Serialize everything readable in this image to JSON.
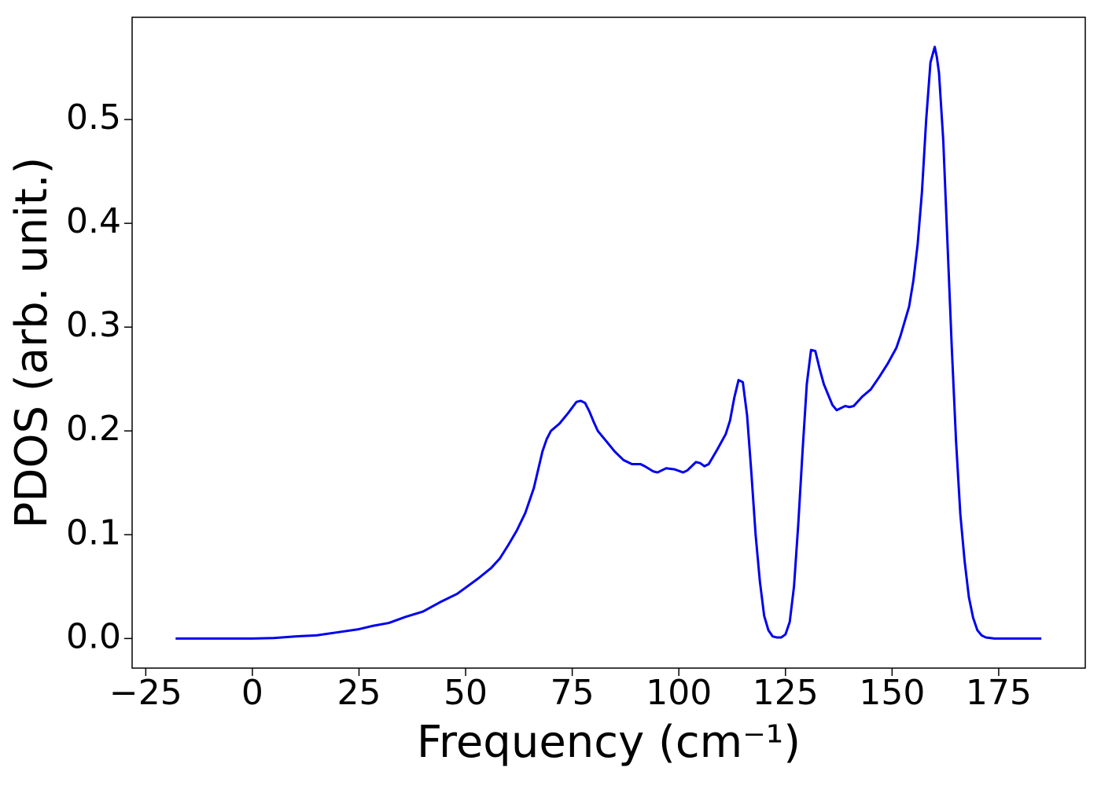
{
  "chart_data": {
    "type": "line",
    "xlabel": "Frequency (cm⁻¹)",
    "ylabel": "PDOS (arb. unit.)",
    "xlim": [
      -28.2,
      195.3
    ],
    "ylim": [
      -0.0285,
      0.5985
    ],
    "xticks": [
      {
        "value": -25,
        "label": "−25"
      },
      0,
      25,
      50,
      75,
      100,
      125,
      150,
      175
    ],
    "yticks": [
      {
        "value": 0,
        "label": "0.0"
      },
      0.1,
      0.2,
      0.3,
      0.4,
      0.5
    ],
    "series": [
      {
        "color": "#0000ee",
        "x": [
          -18,
          0,
          5,
          10,
          15,
          20,
          25,
          28,
          32,
          36,
          40,
          44,
          48,
          50,
          53,
          56,
          58,
          60,
          62,
          64,
          66,
          68,
          69,
          70,
          72,
          74,
          76,
          77,
          78,
          79,
          80,
          81,
          83,
          85,
          87,
          89,
          91,
          92,
          94,
          95,
          97,
          99,
          101,
          102,
          104,
          105,
          106,
          107,
          109,
          111,
          112,
          113,
          114,
          115,
          116,
          117,
          118,
          119,
          120,
          121,
          122,
          123,
          124,
          125,
          126,
          127,
          128,
          129,
          130,
          131,
          132,
          133,
          134,
          136,
          137,
          139,
          140,
          141,
          143,
          145,
          147,
          149,
          151,
          152,
          154,
          155,
          156,
          157,
          158,
          159,
          160,
          160.5,
          161,
          162,
          163,
          164,
          165,
          166,
          167,
          168,
          169,
          170,
          171,
          172,
          174,
          185
        ],
        "values": [
          0,
          0,
          0.0005,
          0.002,
          0.003,
          0.006,
          0.009,
          0.012,
          0.015,
          0.021,
          0.026,
          0.035,
          0.043,
          0.049,
          0.058,
          0.068,
          0.077,
          0.09,
          0.104,
          0.121,
          0.145,
          0.18,
          0.192,
          0.2,
          0.207,
          0.217,
          0.228,
          0.229,
          0.227,
          0.219,
          0.209,
          0.2,
          0.19,
          0.18,
          0.172,
          0.168,
          0.168,
          0.166,
          0.161,
          0.16,
          0.164,
          0.163,
          0.16,
          0.162,
          0.17,
          0.169,
          0.166,
          0.168,
          0.182,
          0.197,
          0.21,
          0.232,
          0.249,
          0.247,
          0.215,
          0.16,
          0.1,
          0.055,
          0.022,
          0.008,
          0.002,
          0.001,
          0.001,
          0.004,
          0.016,
          0.05,
          0.11,
          0.18,
          0.245,
          0.278,
          0.277,
          0.26,
          0.245,
          0.225,
          0.22,
          0.224,
          0.223,
          0.224,
          0.233,
          0.24,
          0.252,
          0.265,
          0.28,
          0.292,
          0.32,
          0.345,
          0.38,
          0.43,
          0.5,
          0.555,
          0.57,
          0.56,
          0.545,
          0.48,
          0.38,
          0.28,
          0.19,
          0.12,
          0.075,
          0.04,
          0.02,
          0.008,
          0.003,
          0.001,
          0,
          0
        ]
      }
    ]
  }
}
